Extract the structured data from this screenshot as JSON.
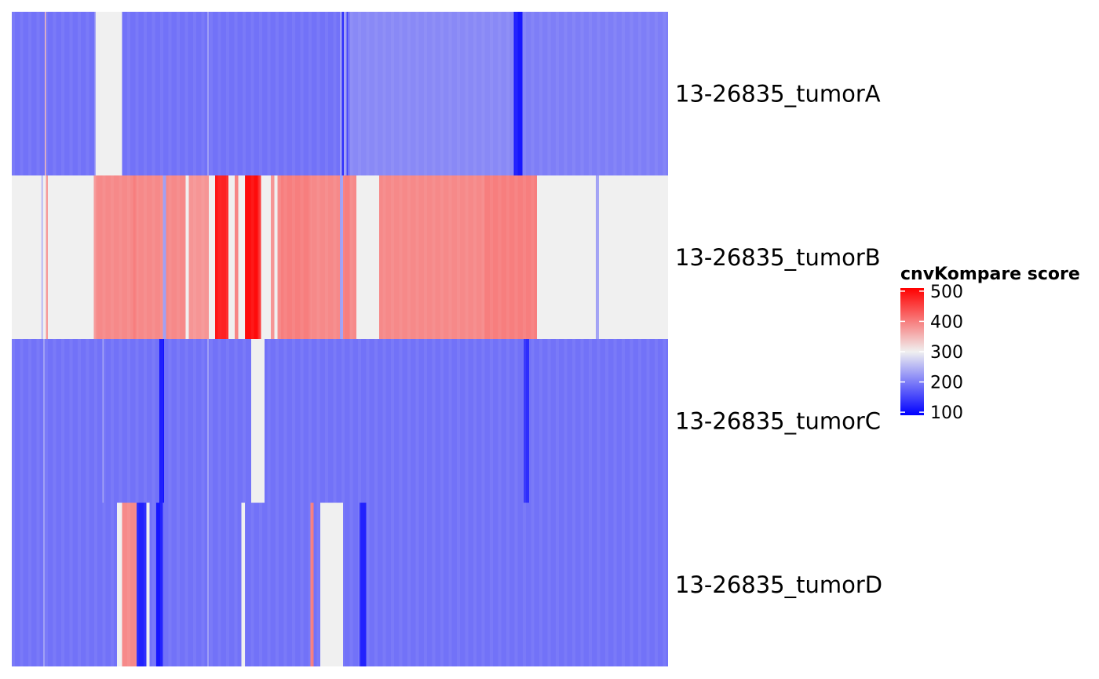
{
  "chart_data": {
    "type": "heatmap",
    "title": "",
    "xlabel": "",
    "ylabel": "",
    "rows": [
      "13-26835_tumorA",
      "13-26835_tumorB",
      "13-26835_tumorC",
      "13-26835_tumorD"
    ],
    "x_domain": [
      0,
      1000
    ],
    "colorbar": {
      "title": "cnvKompare score",
      "ticks": [
        "100",
        "200",
        "300",
        "400",
        "500"
      ],
      "range": [
        90,
        510
      ],
      "colors": {
        "low": "#0000FF",
        "mid": "#F0F0F0",
        "high": "#FF0000"
      },
      "midpoint": 300,
      "legend_position": "right"
    },
    "segments": [
      [
        [
          0,
          50,
          190
        ],
        [
          50,
          52,
          350
        ],
        [
          52,
          126,
          190
        ],
        [
          126,
          128,
          230
        ],
        [
          128,
          168,
          300
        ],
        [
          168,
          298,
          190
        ],
        [
          298,
          300,
          230
        ],
        [
          300,
          500,
          190
        ],
        [
          500,
          503,
          230
        ],
        [
          503,
          506,
          120
        ],
        [
          506,
          510,
          230
        ],
        [
          510,
          512,
          150
        ],
        [
          512,
          515,
          190
        ],
        [
          515,
          550,
          210
        ],
        [
          550,
          765,
          210
        ],
        [
          765,
          778,
          110
        ],
        [
          778,
          1000,
          200
        ]
      ],
      [
        [
          0,
          45,
          300
        ],
        [
          45,
          48,
          260
        ],
        [
          48,
          52,
          300
        ],
        [
          52,
          55,
          380
        ],
        [
          55,
          57,
          300
        ],
        [
          57,
          125,
          300
        ],
        [
          125,
          128,
          380
        ],
        [
          128,
          185,
          390
        ],
        [
          185,
          190,
          400
        ],
        [
          190,
          230,
          390
        ],
        [
          230,
          235,
          230
        ],
        [
          235,
          265,
          390
        ],
        [
          265,
          270,
          300
        ],
        [
          270,
          300,
          380
        ],
        [
          300,
          310,
          300
        ],
        [
          310,
          318,
          490
        ],
        [
          318,
          330,
          480
        ],
        [
          330,
          340,
          300
        ],
        [
          340,
          345,
          400
        ],
        [
          345,
          355,
          300
        ],
        [
          355,
          375,
          500
        ],
        [
          375,
          380,
          470
        ],
        [
          380,
          395,
          300
        ],
        [
          395,
          400,
          380
        ],
        [
          400,
          405,
          300
        ],
        [
          405,
          410,
          390
        ],
        [
          410,
          455,
          400
        ],
        [
          455,
          500,
          390
        ],
        [
          500,
          505,
          230
        ],
        [
          505,
          515,
          400
        ],
        [
          515,
          525,
          390
        ],
        [
          525,
          560,
          300
        ],
        [
          560,
          590,
          390
        ],
        [
          590,
          720,
          390
        ],
        [
          720,
          800,
          400
        ],
        [
          800,
          840,
          300
        ],
        [
          840,
          890,
          300
        ],
        [
          890,
          895,
          230
        ],
        [
          895,
          960,
          300
        ],
        [
          960,
          1000,
          300
        ]
      ],
      [
        [
          0,
          48,
          190
        ],
        [
          48,
          50,
          230
        ],
        [
          50,
          138,
          190
        ],
        [
          138,
          140,
          230
        ],
        [
          140,
          225,
          190
        ],
        [
          225,
          232,
          105
        ],
        [
          232,
          298,
          190
        ],
        [
          298,
          300,
          230
        ],
        [
          300,
          365,
          190
        ],
        [
          365,
          385,
          300
        ],
        [
          385,
          585,
          190
        ],
        [
          585,
          680,
          190
        ],
        [
          680,
          780,
          190
        ],
        [
          780,
          788,
          130
        ],
        [
          788,
          1000,
          190
        ]
      ],
      [
        [
          0,
          48,
          190
        ],
        [
          48,
          50,
          230
        ],
        [
          50,
          160,
          190
        ],
        [
          160,
          168,
          300
        ],
        [
          168,
          190,
          390
        ],
        [
          190,
          205,
          120
        ],
        [
          205,
          210,
          300
        ],
        [
          210,
          220,
          190
        ],
        [
          220,
          230,
          110
        ],
        [
          230,
          298,
          190
        ],
        [
          298,
          300,
          230
        ],
        [
          300,
          350,
          190
        ],
        [
          350,
          355,
          300
        ],
        [
          355,
          455,
          190
        ],
        [
          455,
          460,
          400
        ],
        [
          460,
          470,
          190
        ],
        [
          470,
          478,
          300
        ],
        [
          478,
          505,
          300
        ],
        [
          505,
          530,
          190
        ],
        [
          530,
          540,
          120
        ],
        [
          540,
          1000,
          190
        ]
      ]
    ]
  }
}
